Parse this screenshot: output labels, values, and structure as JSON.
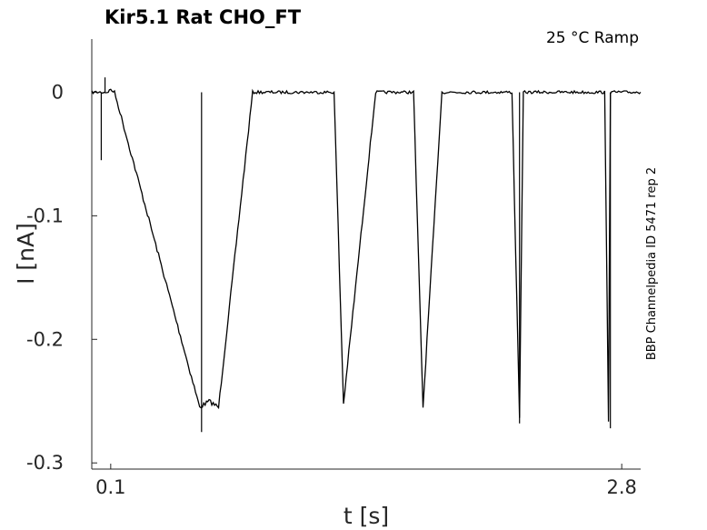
{
  "chart_data": {
    "type": "line",
    "title": "Kir5.1  Rat  CHO_FT",
    "annotation": "25 °C  Ramp",
    "side_label": "BBP Channelpedia ID 5471 rep 2",
    "xlabel": "t [s]",
    "ylabel": "I [nA]",
    "xlim": [
      0.0,
      2.9
    ],
    "ylim": [
      -0.305,
      0.043
    ],
    "x_tick_values": [
      0.1,
      2.8
    ],
    "x_tick_labels": [
      "0.1",
      "2.8"
    ],
    "y_tick_values": [
      0,
      -0.1,
      -0.2,
      -0.3
    ],
    "y_tick_labels": [
      "0",
      "-0.1",
      "-0.2",
      "-0.3"
    ],
    "grid": false,
    "line_color": "#000000",
    "series": [
      {
        "x": [
          0.0,
          0.08,
          0.1,
          0.12,
          0.57,
          0.62,
          0.67,
          0.85,
          1.28,
          1.33,
          1.5,
          1.7,
          1.75,
          1.85,
          2.22,
          2.26,
          2.28,
          2.44,
          2.71,
          2.73,
          2.74,
          2.79,
          2.9
        ],
        "y": [
          0.0,
          0.0,
          0.002,
          0.0,
          -0.255,
          -0.25,
          -0.255,
          0.0,
          0.0,
          -0.252,
          0.0,
          0.0,
          -0.255,
          0.0,
          0.0,
          -0.262,
          0.0,
          0.0,
          0.0,
          -0.265,
          0.0,
          0.0,
          0.0
        ]
      }
    ],
    "spikes": [
      {
        "x": 0.05,
        "y": -0.055
      },
      {
        "x": 0.07,
        "y": 0.012
      },
      {
        "x": 0.58,
        "y": -0.275
      },
      {
        "x": 2.26,
        "y": -0.268
      },
      {
        "x": 2.74,
        "y": -0.272
      }
    ]
  }
}
